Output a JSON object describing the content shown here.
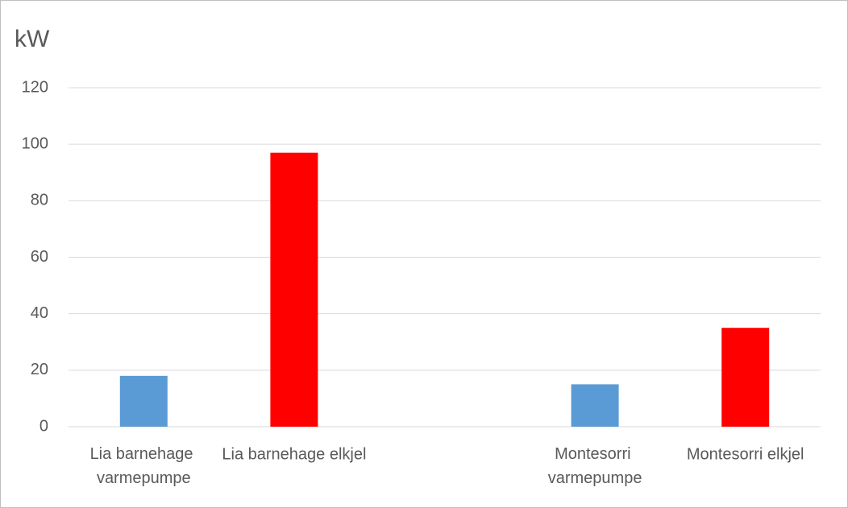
{
  "chart_data": {
    "type": "bar",
    "title": "kW",
    "categories": [
      "Lia barnehage varmepumpe",
      "Lia barnehage elkjel",
      null,
      "Montesorri varmepumpe",
      "Montesorri elkjel"
    ],
    "values": [
      18,
      97,
      null,
      15,
      35
    ],
    "colors": [
      "#5b9bd5",
      "#ff0000",
      null,
      "#5b9bd5",
      "#ff0000"
    ],
    "ylim": [
      0,
      120
    ],
    "yticks": [
      0,
      20,
      40,
      60,
      80,
      100,
      120
    ],
    "grid": true
  }
}
